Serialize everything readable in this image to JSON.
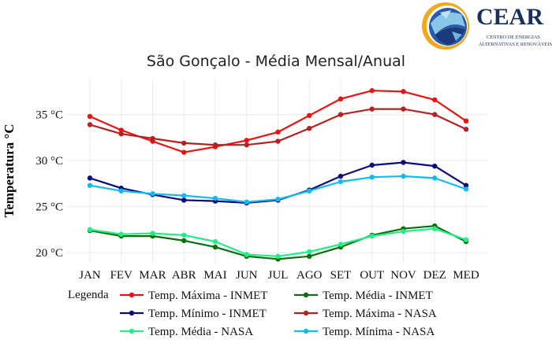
{
  "logo": {
    "name": "CEAR",
    "subtitle_line1": "CENTRO DE ENERGIAS",
    "subtitle_line2": "ALTERNATIVAS E RENOVÁVEIS"
  },
  "chart_data": {
    "type": "line",
    "title": "São Gonçalo - Média Mensal/Anual",
    "xlabel": "",
    "ylabel": "Temperatura °C",
    "categories": [
      "JAN",
      "FEV",
      "MAR",
      "ABR",
      "MAI",
      "JUN",
      "JUL",
      "AGO",
      "SET",
      "OUT",
      "NOV",
      "DEZ",
      "MED"
    ],
    "yticks": [
      20,
      25,
      30,
      35
    ],
    "ytick_labels": [
      "20 °C",
      "25 °C",
      "30 °C",
      "35 °C"
    ],
    "ylim": [
      18.9,
      38.9
    ],
    "grid": true,
    "legend_title": "Legenda",
    "legend_position": "bottom",
    "series": [
      {
        "name": "Temp. Máxima - INMET",
        "color": "#ee1111",
        "values": [
          34.8,
          33.3,
          32.1,
          30.9,
          31.5,
          32.2,
          33.1,
          34.9,
          36.7,
          37.6,
          37.5,
          36.6,
          34.3
        ]
      },
      {
        "name": "Temp. Média - INMET",
        "color": "#0a6e0a",
        "values": [
          22.4,
          21.8,
          21.8,
          21.3,
          20.6,
          19.6,
          19.3,
          19.6,
          20.6,
          21.9,
          22.6,
          22.9,
          21.2
        ]
      },
      {
        "name": "Temp. Mínimo - INMET",
        "color": "#0a0a7a",
        "values": [
          28.1,
          27.0,
          26.3,
          25.7,
          25.6,
          25.4,
          25.7,
          26.8,
          28.3,
          29.5,
          29.8,
          29.4,
          27.3
        ]
      },
      {
        "name": "Temp. Máxima - NASA",
        "color": "#b22222",
        "values": [
          33.9,
          32.9,
          32.4,
          31.9,
          31.7,
          31.7,
          32.1,
          33.5,
          35.0,
          35.6,
          35.6,
          35.0,
          33.4
        ]
      },
      {
        "name": "Temp. Média - NASA",
        "color": "#22ee88",
        "values": [
          22.5,
          22.0,
          22.1,
          21.9,
          21.2,
          19.8,
          19.6,
          20.1,
          20.9,
          21.8,
          22.3,
          22.6,
          21.4
        ]
      },
      {
        "name": "Temp. Mínima - NASA",
        "color": "#11bbee",
        "values": [
          27.3,
          26.7,
          26.4,
          26.2,
          25.9,
          25.5,
          25.8,
          26.7,
          27.7,
          28.2,
          28.3,
          28.1,
          26.9
        ]
      }
    ]
  }
}
